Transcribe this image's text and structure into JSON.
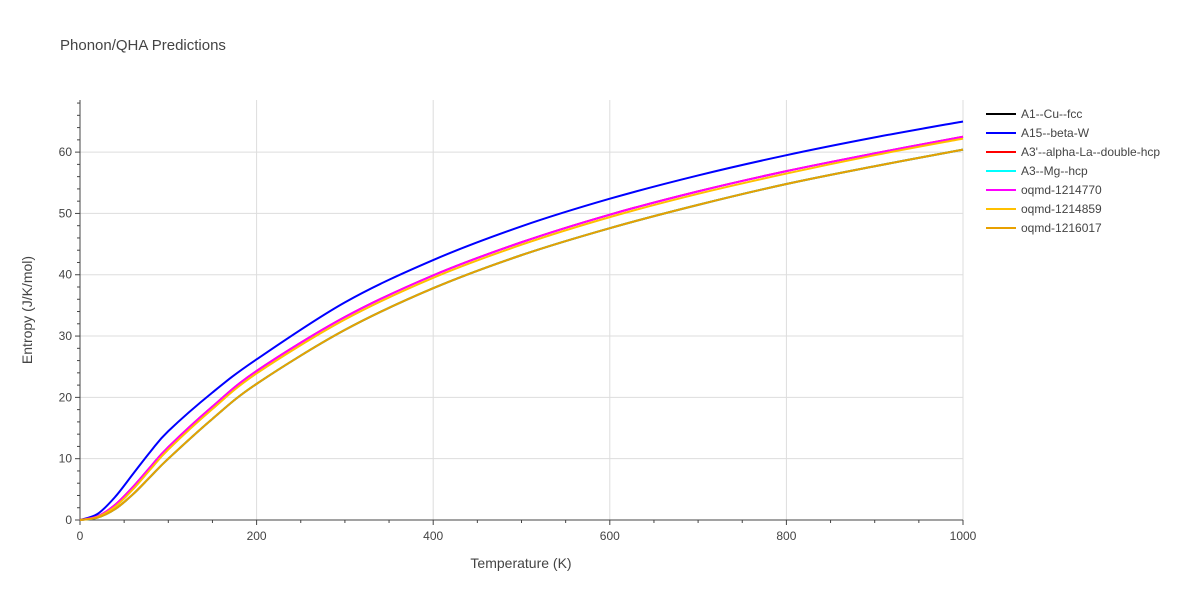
{
  "chart_data": {
    "type": "line",
    "title": "Phonon/QHA Predictions",
    "xlabel": "Temperature (K)",
    "ylabel": "Entropy (J/K/mol)",
    "xlim": [
      0,
      1000
    ],
    "ylim": [
      0,
      68.5
    ],
    "xticks": [
      0,
      200,
      400,
      600,
      800,
      1000
    ],
    "yticks": [
      0,
      10,
      20,
      30,
      40,
      50,
      60
    ],
    "grid": true,
    "legend_position": "top-right",
    "series": [
      {
        "name": "A1--Cu--fcc",
        "color": "#000000",
        "x": [
          0,
          20,
          40,
          60,
          80,
          100,
          150,
          200,
          300,
          400,
          500,
          600,
          700,
          800,
          900,
          1000
        ],
        "y": [
          0,
          0.4,
          1.8,
          4.2,
          7.1,
          10.0,
          16.5,
          22.2,
          31.0,
          37.8,
          43.2,
          47.6,
          51.4,
          54.8,
          57.7,
          60.4
        ]
      },
      {
        "name": "A15--beta-W",
        "color": "#0000ff",
        "x": [
          0,
          20,
          40,
          60,
          80,
          100,
          150,
          200,
          300,
          400,
          500,
          600,
          700,
          800,
          900,
          1000
        ],
        "y": [
          0,
          1.0,
          3.8,
          7.5,
          11.2,
          14.5,
          20.8,
          26.2,
          35.5,
          42.4,
          47.9,
          52.4,
          56.2,
          59.5,
          62.4,
          65.0
        ]
      },
      {
        "name": "A3'--alpha-La--double-hcp",
        "color": "#ff0000",
        "x": [
          0,
          20,
          40,
          60,
          80,
          100,
          150,
          200,
          300,
          400,
          500,
          600,
          700,
          800,
          900,
          1000
        ],
        "y": [
          0,
          0.6,
          2.5,
          5.4,
          8.7,
          11.9,
          18.5,
          24.3,
          33.1,
          39.9,
          45.3,
          49.8,
          53.6,
          56.9,
          59.8,
          62.5
        ]
      },
      {
        "name": "A3--Mg--hcp",
        "color": "#00ffff",
        "x": [
          0,
          20,
          40,
          60,
          80,
          100,
          150,
          200,
          300,
          400,
          500,
          600,
          700,
          800,
          900,
          1000
        ],
        "y": [
          0,
          0.4,
          1.8,
          4.2,
          7.1,
          10.0,
          16.5,
          22.2,
          31.0,
          37.8,
          43.2,
          47.6,
          51.4,
          54.8,
          57.7,
          60.4
        ]
      },
      {
        "name": "oqmd-1214770",
        "color": "#ff00ff",
        "x": [
          0,
          20,
          40,
          60,
          80,
          100,
          150,
          200,
          300,
          400,
          500,
          600,
          700,
          800,
          900,
          1000
        ],
        "y": [
          0,
          0.6,
          2.5,
          5.4,
          8.7,
          11.9,
          18.5,
          24.3,
          33.1,
          39.9,
          45.3,
          49.8,
          53.6,
          56.9,
          59.8,
          62.5
        ]
      },
      {
        "name": "oqmd-1214859",
        "color": "#ffc000",
        "x": [
          0,
          20,
          40,
          60,
          80,
          100,
          150,
          200,
          300,
          400,
          500,
          600,
          700,
          800,
          900,
          1000
        ],
        "y": [
          0,
          0.5,
          2.2,
          5.0,
          8.3,
          11.5,
          18.1,
          23.9,
          32.7,
          39.5,
          44.9,
          49.4,
          53.2,
          56.5,
          59.5,
          62.2
        ]
      },
      {
        "name": "oqmd-1216017",
        "color": "#e8a000",
        "x": [
          0,
          20,
          40,
          60,
          80,
          100,
          150,
          200,
          300,
          400,
          500,
          600,
          700,
          800,
          900,
          1000
        ],
        "y": [
          0,
          0.4,
          1.8,
          4.2,
          7.1,
          10.0,
          16.5,
          22.2,
          31.0,
          37.8,
          43.2,
          47.6,
          51.4,
          54.8,
          57.7,
          60.4
        ]
      }
    ]
  }
}
